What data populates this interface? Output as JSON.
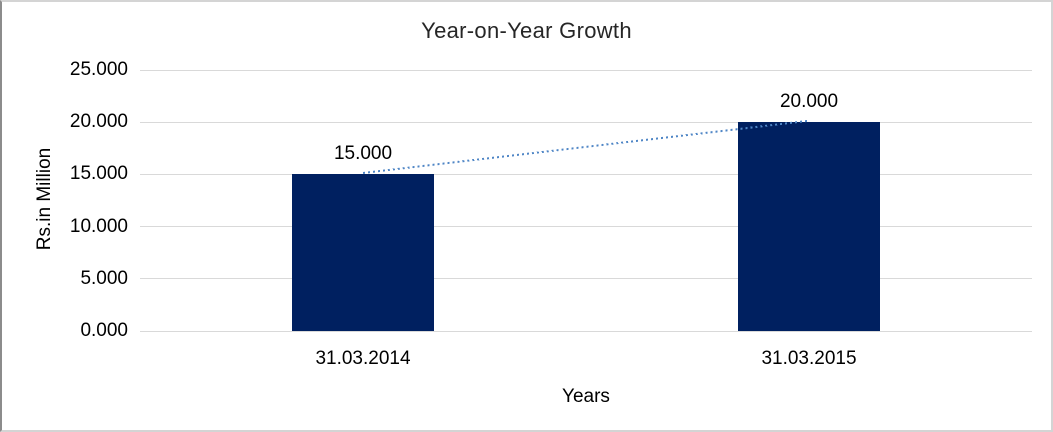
{
  "chart_data": {
    "type": "bar",
    "title": "Year-on-Year Growth",
    "xlabel": "Years",
    "ylabel": "Rs.in Million",
    "categories": [
      "31.03.2014",
      "31.03.2015"
    ],
    "values": [
      15,
      20
    ],
    "value_labels": [
      "15.000",
      "20.000"
    ],
    "yticks": [
      0,
      5,
      10,
      15,
      20,
      25
    ],
    "ytick_labels": [
      "0.000",
      "5.000",
      "10.000",
      "15.000",
      "20.000",
      "25.000"
    ],
    "ylim": [
      0,
      25
    ],
    "grid": true,
    "legend": "none",
    "trendline": {
      "style": "dotted",
      "points": [
        [
          0,
          15
        ],
        [
          1,
          20
        ]
      ]
    },
    "colors": {
      "bar": "#002060",
      "trendline": "#4f86c6",
      "gridline": "#d9d9d9",
      "title_text": "#262626",
      "axis_text": "#000000"
    }
  }
}
